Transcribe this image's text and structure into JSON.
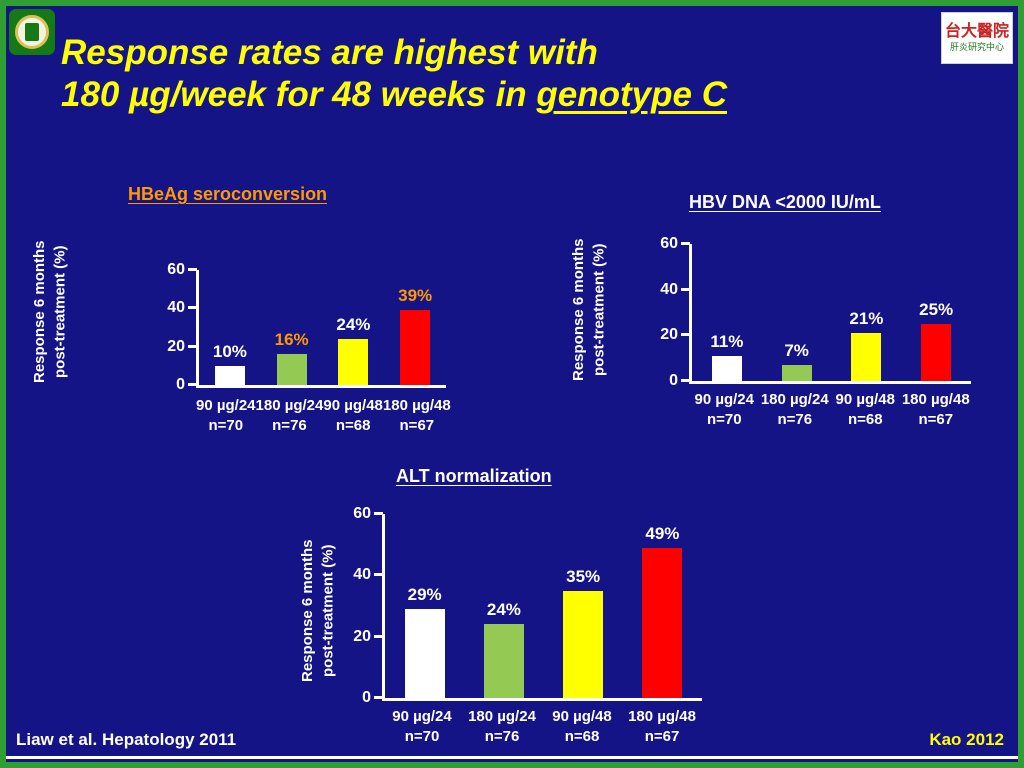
{
  "slide": {
    "title_line1": "Response rates are highest with",
    "title_line2_prefix": "180 µg/week for 48 weeks in ",
    "title_line2_underlined": "genotype C",
    "footer_left": "Liaw et al. Hepatology 2011",
    "footer_right": "Kao 2012"
  },
  "logos": {
    "top_right_line1": "台大醫院",
    "top_right_line2": "肝炎研究中心"
  },
  "y_axis": {
    "line1": "Response 6 months",
    "line2": "post-treatment (%)"
  },
  "colors": {
    "background": "#141487",
    "border_green": "#2f9e33",
    "title_yellow": "#ffff00",
    "axis_white": "#ffffff",
    "orange_accent": "#ff9900",
    "bar_white": "#ffffff",
    "bar_green": "#94c954",
    "bar_yellow": "#ffff00",
    "bar_red": "#ff0000"
  },
  "chart_data": [
    {
      "type": "bar",
      "title": "HBeAg seroconversion",
      "title_color": "#ff9900",
      "categories": [
        "90 µg/24",
        "180 µg/24",
        "90 µg/48",
        "180 µg/48"
      ],
      "n_values": [
        "n=70",
        "n=76",
        "n=68",
        "n=67"
      ],
      "values": [
        10,
        16,
        24,
        39
      ],
      "value_labels": [
        "10%",
        "16%",
        "24%",
        "39%"
      ],
      "value_label_colors": [
        "#ffffff",
        "#ff9900",
        "#ffffff",
        "#ff9900"
      ],
      "bar_colors": [
        "#ffffff",
        "#94c954",
        "#ffff00",
        "#ff0000"
      ],
      "ylabel": "Response 6 months post-treatment (%)",
      "ylim": [
        0,
        60
      ],
      "yticks": [
        0,
        20,
        40,
        60
      ],
      "grid": false,
      "legend": "none"
    },
    {
      "type": "bar",
      "title": "HBV DNA <2000 IU/mL",
      "title_color": "#ffffff",
      "categories": [
        "90 µg/24",
        "180 µg/24",
        "90 µg/48",
        "180 µg/48"
      ],
      "n_values": [
        "n=70",
        "n=76",
        "n=68",
        "n=67"
      ],
      "values": [
        11,
        7,
        21,
        25
      ],
      "value_labels": [
        "11%",
        "7%",
        "21%",
        "25%"
      ],
      "value_label_colors": [
        "#ffffff",
        "#ffffff",
        "#ffffff",
        "#ffffff"
      ],
      "bar_colors": [
        "#ffffff",
        "#94c954",
        "#ffff00",
        "#ff0000"
      ],
      "ylabel": "Response 6 months post-treatment (%)",
      "ylim": [
        0,
        60
      ],
      "yticks": [
        0,
        20,
        40,
        60
      ],
      "grid": false,
      "legend": "none"
    },
    {
      "type": "bar",
      "title": "ALT normalization",
      "title_color": "#ffffff",
      "categories": [
        "90 µg/24",
        "180 µg/24",
        "90 µg/48",
        "180 µg/48"
      ],
      "n_values": [
        "n=70",
        "n=76",
        "n=68",
        "n=67"
      ],
      "values": [
        29,
        24,
        35,
        49
      ],
      "value_labels": [
        "29%",
        "24%",
        "35%",
        "49%"
      ],
      "value_label_colors": [
        "#ffffff",
        "#ffffff",
        "#ffffff",
        "#ffffff"
      ],
      "bar_colors": [
        "#ffffff",
        "#94c954",
        "#ffff00",
        "#ff0000"
      ],
      "ylabel": "Response 6 months post-treatment (%)",
      "ylim": [
        0,
        60
      ],
      "yticks": [
        0,
        20,
        40,
        60
      ],
      "grid": false,
      "legend": "none"
    }
  ]
}
